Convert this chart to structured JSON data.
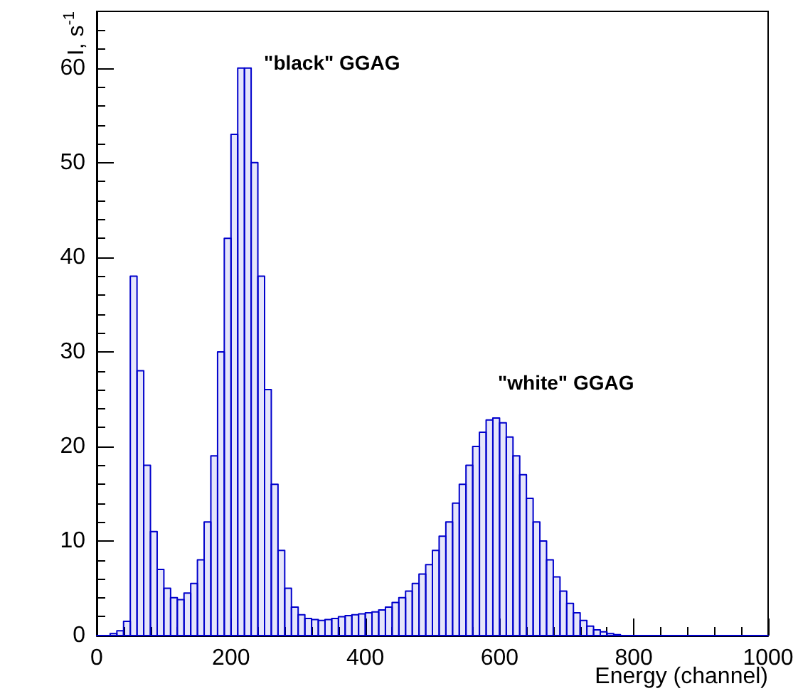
{
  "chart_data": {
    "type": "histogram",
    "xlabel": "Energy (channel)",
    "ylabel": "I, s$^{-1}$",
    "bins": [
      0,
      10,
      20,
      30,
      40,
      50,
      60,
      70,
      80,
      90,
      100,
      110,
      120,
      130,
      140,
      150,
      160,
      170,
      180,
      190,
      200,
      210,
      220,
      230,
      240,
      250,
      260,
      270,
      280,
      290,
      300,
      310,
      320,
      330,
      340,
      350,
      360,
      370,
      380,
      390,
      400,
      410,
      420,
      430,
      440,
      450,
      460,
      470,
      480,
      490,
      500,
      510,
      520,
      530,
      540,
      550,
      560,
      570,
      580,
      590,
      600,
      610,
      620,
      630,
      640,
      650,
      660,
      670,
      680,
      690,
      700,
      710,
      720,
      730,
      740,
      750,
      760,
      770,
      780,
      790,
      800,
      810,
      820,
      830,
      840,
      850,
      860,
      870,
      880,
      890,
      900,
      910,
      920,
      930,
      940,
      950,
      960,
      970,
      980,
      990,
      1000
    ],
    "values": [
      0,
      0,
      0.2,
      0.5,
      1.5,
      38,
      28,
      18,
      11,
      7,
      5,
      4,
      3.8,
      4.5,
      5.5,
      8,
      12,
      19,
      30,
      42,
      53,
      60,
      60,
      50,
      38,
      26,
      16,
      9,
      5,
      3,
      2.2,
      1.8,
      1.7,
      1.6,
      1.7,
      1.8,
      2,
      2.1,
      2.2,
      2.3,
      2.4,
      2.5,
      2.7,
      3,
      3.5,
      4,
      4.7,
      5.5,
      6.5,
      7.5,
      9,
      10.5,
      12,
      14,
      16,
      18,
      20,
      21.5,
      22.8,
      23,
      22.5,
      21,
      19,
      17,
      14.5,
      12,
      10,
      8,
      6.2,
      4.7,
      3.4,
      2.4,
      1.6,
      1,
      0.6,
      0.4,
      0.2,
      0.1,
      0,
      0,
      0,
      0,
      0,
      0,
      0,
      0,
      0,
      0,
      0,
      0,
      0,
      0,
      0,
      0,
      0,
      0,
      0,
      0,
      0,
      0
    ],
    "color": "#0000cc",
    "xlim": [
      0,
      1000
    ],
    "xticks": [
      0,
      200,
      400,
      600,
      800,
      1000
    ],
    "ylim": [
      0,
      66
    ],
    "yticks": [
      0,
      10,
      20,
      30,
      40,
      50,
      60
    ],
    "annotations": [
      {
        "text": "\"black\" GGAG",
        "x": 230,
        "y": 60
      },
      "\"white\" GGAG"
    ]
  }
}
